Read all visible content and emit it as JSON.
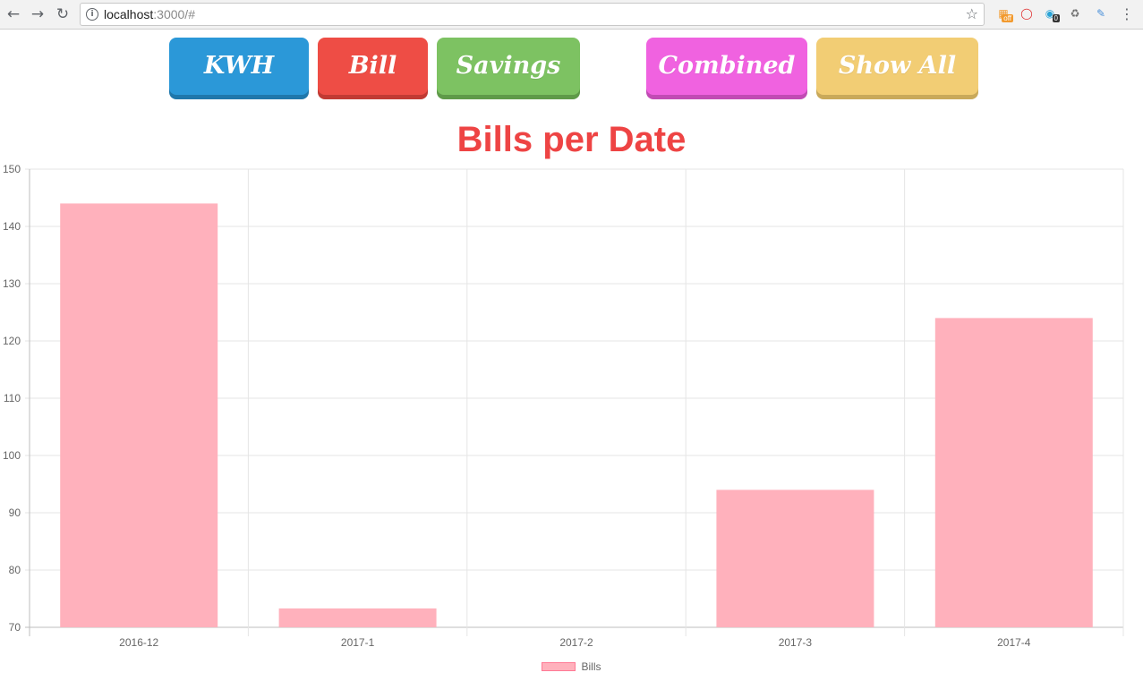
{
  "browser": {
    "url_host": "localhost",
    "url_path": ":3000/#",
    "extensions": [
      {
        "name": "ublock-icon",
        "badge": "off",
        "color": "#f29a2e"
      },
      {
        "name": "opera-icon",
        "badge": "",
        "color": "#e02b2b"
      },
      {
        "name": "ghostery-icon",
        "badge": "0",
        "color": "#29a3d6"
      },
      {
        "name": "recycle-icon",
        "badge": "",
        "color": "#6d6d6d"
      },
      {
        "name": "pipette-icon",
        "badge": "",
        "color": "#4a90d9"
      }
    ]
  },
  "buttons": [
    {
      "label": "KWH",
      "color": "#2b98d8",
      "shadow": "#1f77ab"
    },
    {
      "label": "Bill",
      "color": "#ee4d45",
      "shadow": "#c13a33"
    },
    {
      "label": "Savings",
      "color": "#7dc262",
      "shadow": "#5f9a49"
    },
    {
      "label": "Combined",
      "color": "#f062e0",
      "shadow": "#c14bb4"
    },
    {
      "label": "Show All",
      "color": "#f2cd74",
      "shadow": "#c9a95a"
    }
  ],
  "chart_data": {
    "type": "bar",
    "title": "Bills per Date",
    "categories": [
      "2016-12",
      "2017-1",
      "2017-2",
      "2017-3",
      "2017-4"
    ],
    "series": [
      {
        "name": "Bills",
        "values": [
          144,
          73.3,
          70,
          94,
          124
        ]
      }
    ],
    "ylim": [
      70,
      150
    ],
    "yticks": [
      70,
      80,
      90,
      100,
      110,
      120,
      130,
      140,
      150
    ],
    "grid": true,
    "legend": "bottom",
    "bar_color": "#ffb1bc",
    "title_color": "#ee4444"
  }
}
